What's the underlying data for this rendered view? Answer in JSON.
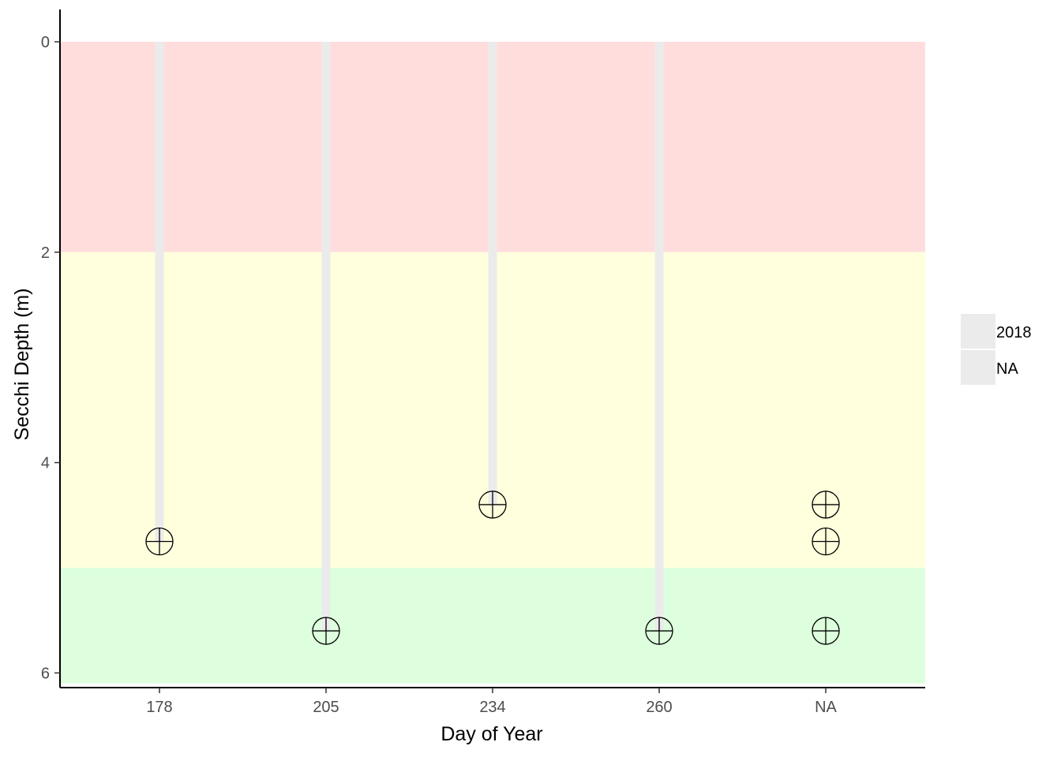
{
  "chart_data": {
    "type": "scatter",
    "title": "",
    "xlabel": "Day of Year",
    "ylabel": "Secchi Depth (m)",
    "categories": [
      "178",
      "205",
      "234",
      "260",
      "NA"
    ],
    "y_reversed": true,
    "ylim": [
      0,
      6.1
    ],
    "yticks": [
      0,
      2,
      4,
      6
    ],
    "grid": false,
    "bands": [
      {
        "from": 0,
        "to": 2,
        "color": "#ffdddd"
      },
      {
        "from": 2,
        "to": 5,
        "color": "#ffffdd"
      },
      {
        "from": 5,
        "to": 6.1,
        "color": "#ddffdd"
      }
    ],
    "series": [
      {
        "name": "2018",
        "drop_lines": true,
        "line_color": "#ebebeb",
        "points": [
          {
            "x": "178",
            "y": 4.75
          },
          {
            "x": "205",
            "y": 5.6
          },
          {
            "x": "234",
            "y": 4.4
          },
          {
            "x": "260",
            "y": 5.6
          }
        ]
      },
      {
        "name": "NA",
        "drop_lines": false,
        "points": [
          {
            "x": "NA",
            "y": 4.4
          },
          {
            "x": "NA",
            "y": 4.75
          },
          {
            "x": "NA",
            "y": 5.6
          }
        ]
      }
    ],
    "marker": "circle-plus",
    "legend": {
      "position": "right",
      "entries": [
        "2018",
        "NA"
      ],
      "key_color": "#ebebeb"
    }
  }
}
